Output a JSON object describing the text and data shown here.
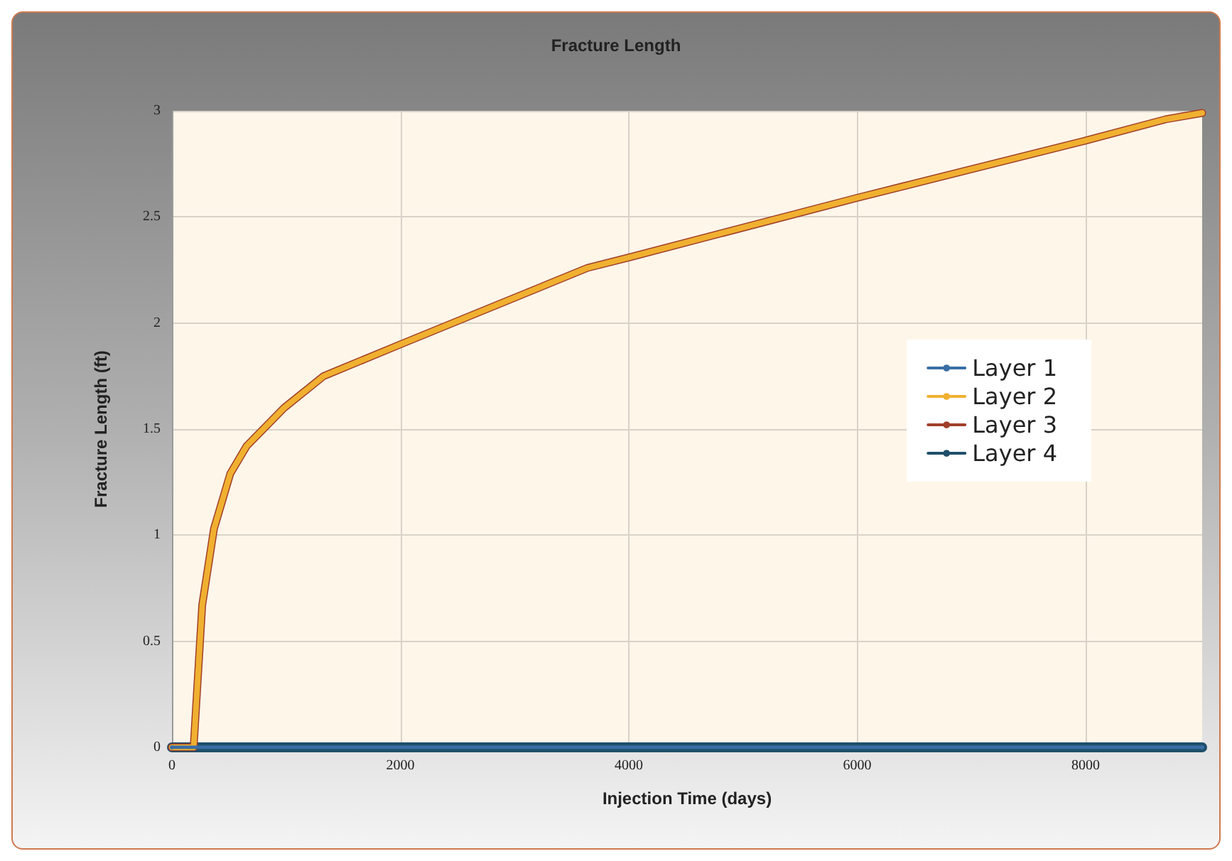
{
  "chart_data": {
    "type": "line",
    "title": "Fracture Length",
    "xlabel": "Injection Time (days)",
    "ylabel": "Fracture Length (ft)",
    "xlim": [
      0,
      9020
    ],
    "ylim": [
      0,
      3
    ],
    "xticks": [
      0,
      2000,
      4000,
      6000,
      8000
    ],
    "yticks": [
      0,
      0.5,
      1,
      1.5,
      2,
      2.5,
      3
    ],
    "grid": true,
    "legend": "right",
    "marker": "circle",
    "line_style": "solid",
    "series": [
      {
        "name": "Layer 1",
        "color": "#3a6ea5",
        "x": [
          0,
          9020
        ],
        "values": [
          0,
          0
        ]
      },
      {
        "name": "Layer 2",
        "color": "#f0b030",
        "x": [
          0,
          190,
          265,
          368,
          511,
          654,
          982,
          1329,
          2004,
          3640,
          4008,
          6000,
          8000,
          8700,
          9020
        ],
        "values": [
          0,
          0,
          0.67,
          1.03,
          1.29,
          1.42,
          1.6,
          1.75,
          1.9,
          2.26,
          2.31,
          2.59,
          2.86,
          2.96,
          2.99
        ]
      },
      {
        "name": "Layer 3",
        "color": "#a0402a",
        "x": [
          0,
          190,
          265,
          368,
          511,
          654,
          982,
          1329,
          2004,
          3640,
          4008,
          6000,
          8000,
          8700,
          9020
        ],
        "values": [
          0,
          0,
          0.67,
          1.03,
          1.29,
          1.42,
          1.6,
          1.75,
          1.9,
          2.26,
          2.31,
          2.59,
          2.86,
          2.96,
          2.99
        ]
      },
      {
        "name": "Layer 4",
        "color": "#1f4f6b",
        "x": [
          0,
          9020
        ],
        "values": [
          0,
          0
        ]
      }
    ]
  }
}
